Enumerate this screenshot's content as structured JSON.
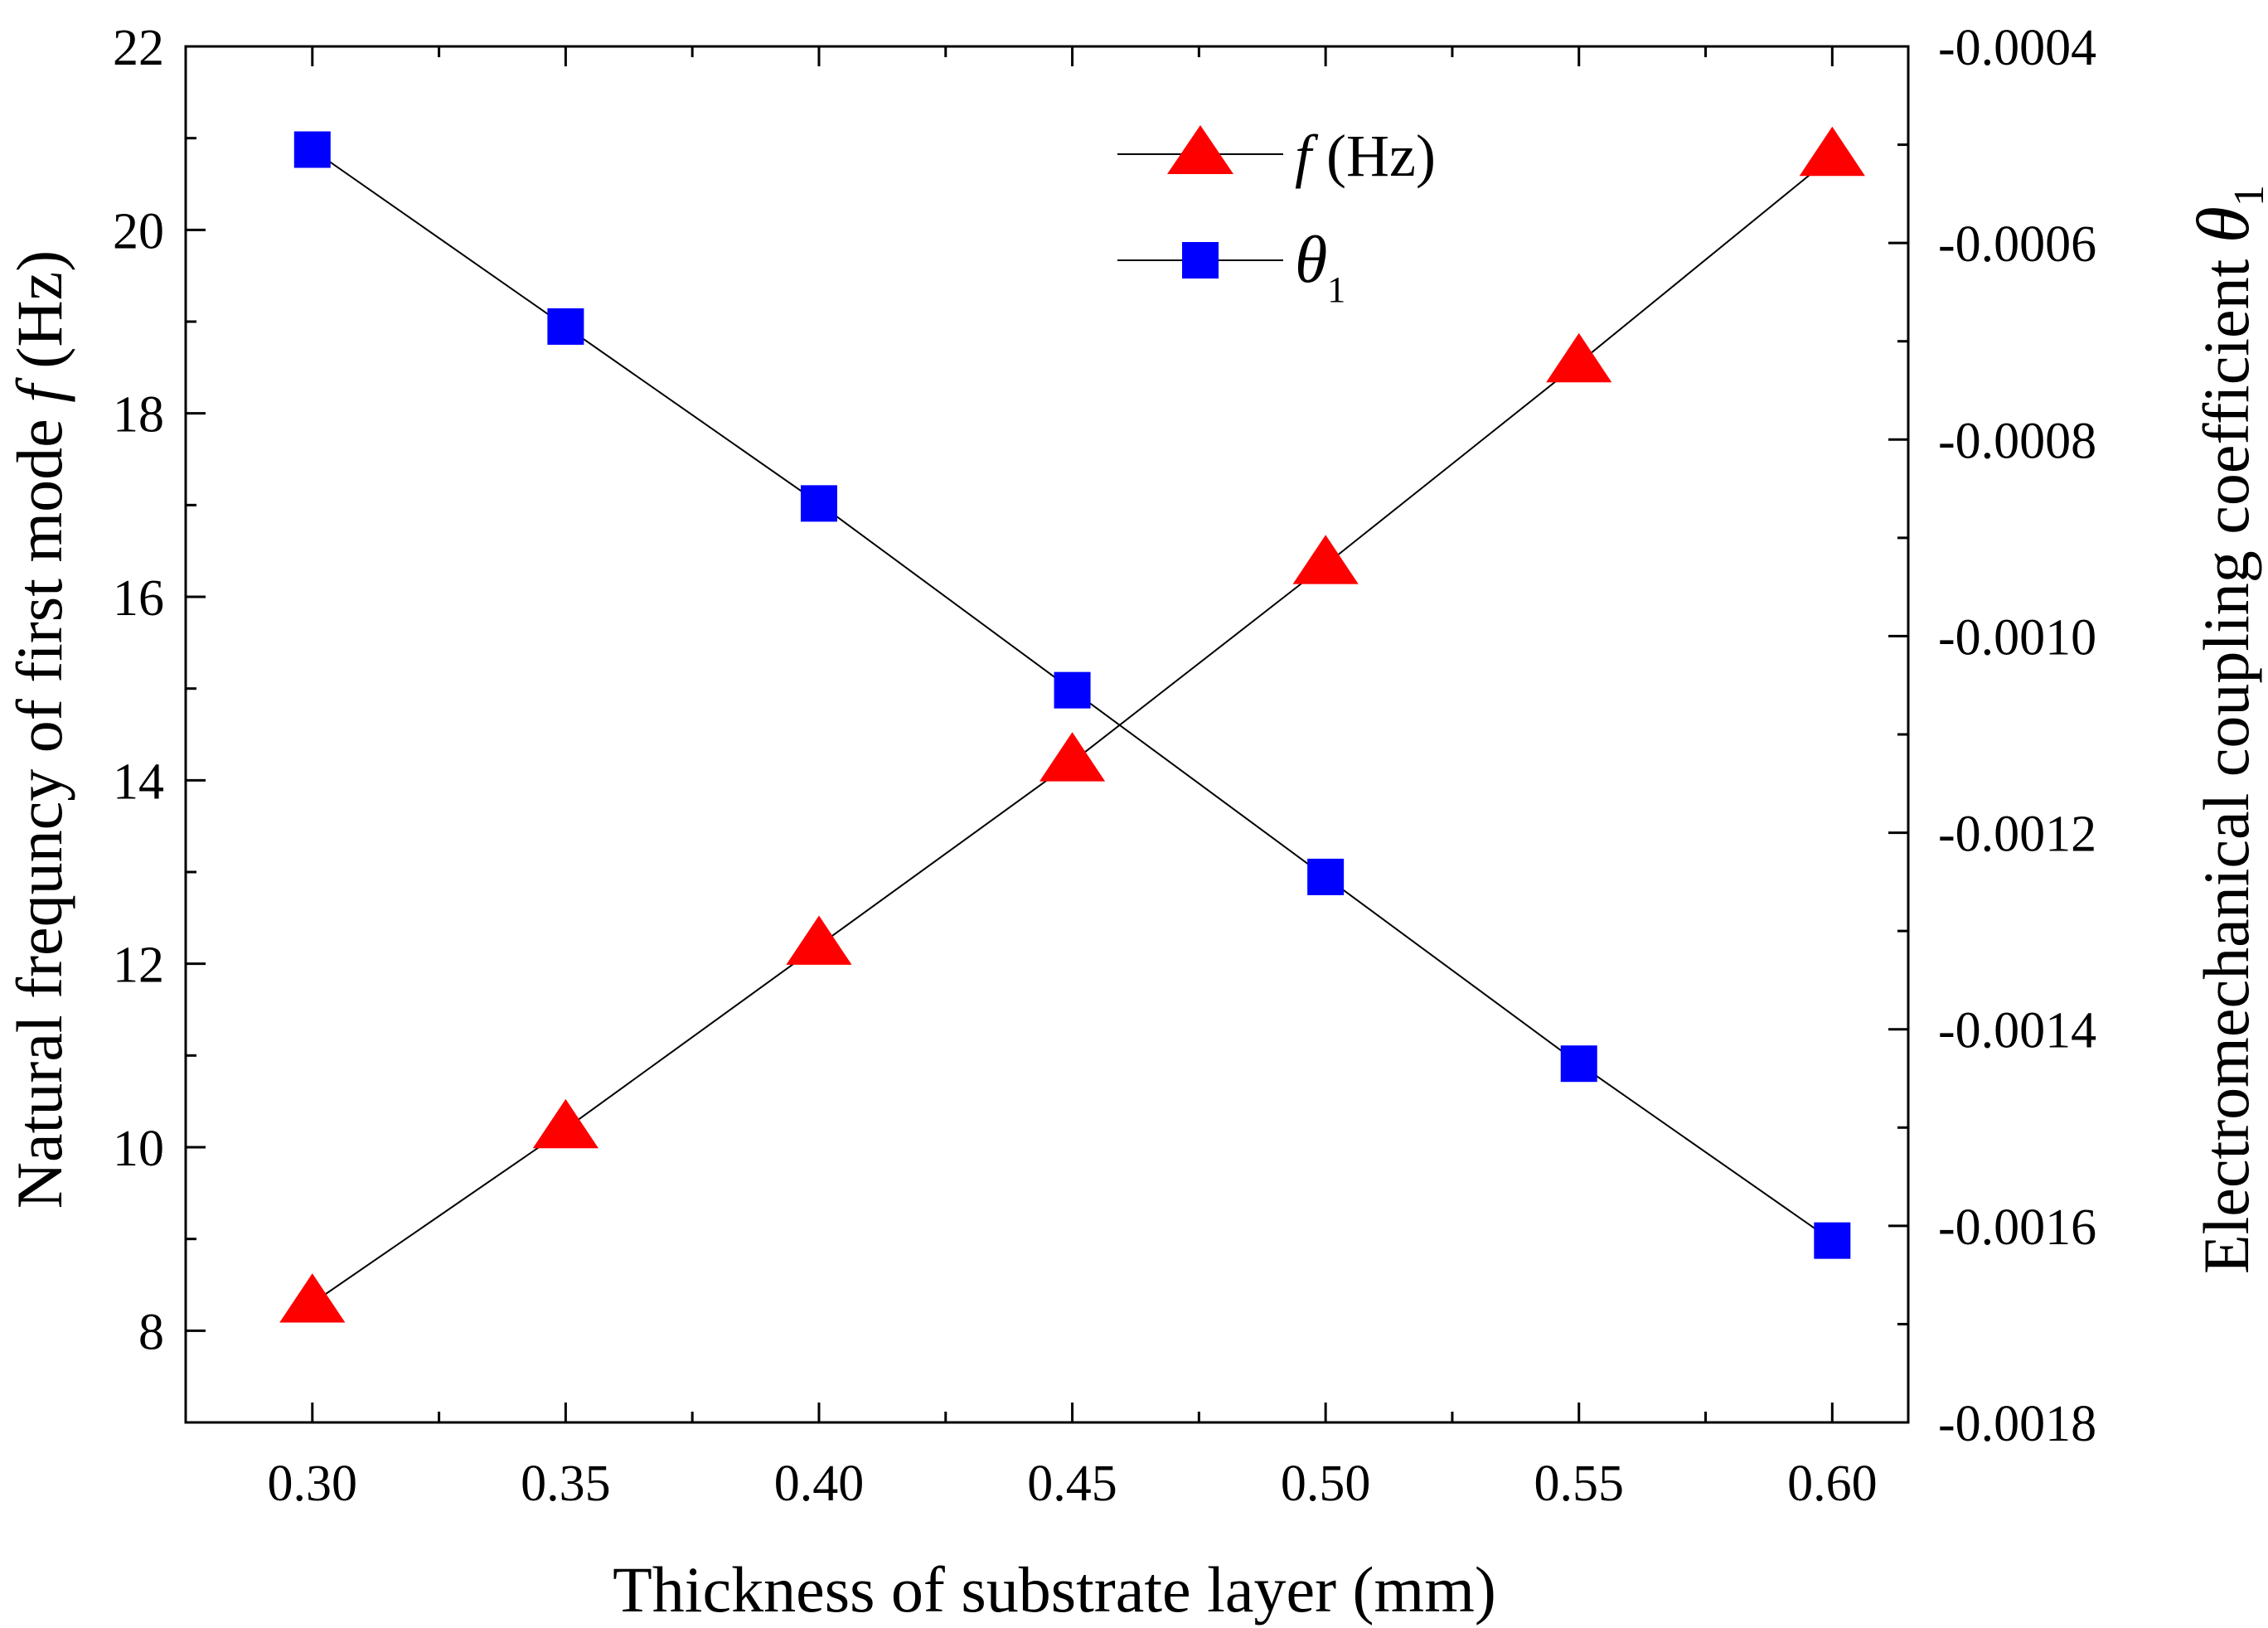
{
  "chart_data": {
    "type": "line",
    "title": "",
    "x": [
      0.3,
      0.35,
      0.4,
      0.45,
      0.5,
      0.55,
      0.6
    ],
    "x_tick_labels": [
      "0.30",
      "0.35",
      "0.40",
      "0.45",
      "0.50",
      "0.55",
      "0.60"
    ],
    "xlim": [
      0.275,
      0.615
    ],
    "xlabel": "Thickness of substrate layer  (mm)",
    "y_left": {
      "label_prefix": "Natural frequncy of first mode ",
      "label_symbol": "f",
      "label_suffix": " (Hz)",
      "lim": [
        7,
        22
      ],
      "ticks": [
        8,
        10,
        12,
        14,
        16,
        18,
        20,
        22
      ],
      "tick_labels": [
        "8",
        "10",
        "12",
        "14",
        "16",
        "18",
        "20",
        "22"
      ]
    },
    "y_right": {
      "label_prefix": "Electromechanical coupling coefficient ",
      "label_symbol": "θ",
      "label_subscript": "1",
      "lim": [
        -0.0018,
        -0.0004
      ],
      "ticks": [
        -0.0018,
        -0.0016,
        -0.0014,
        -0.0012,
        -0.001,
        -0.0008,
        -0.0006,
        -0.0004
      ],
      "tick_labels": [
        "-0.0018",
        "-0.0016",
        "-0.0014",
        "-0.0012",
        "-0.0010",
        "-0.0008",
        "-0.0006",
        "-0.0004"
      ]
    },
    "series": [
      {
        "name": "f (Hz)",
        "legend_symbol": "f",
        "legend_suffix": " (Hz)",
        "axis": "left",
        "marker": "triangle",
        "color": "#ff0000",
        "values": [
          8.3,
          10.2,
          12.2,
          14.2,
          16.35,
          18.55,
          20.8
        ]
      },
      {
        "name": "θ1",
        "legend_symbol": "θ",
        "legend_subscript": "1",
        "axis": "right",
        "marker": "square",
        "color": "#0000ff",
        "values": [
          -0.000505,
          -0.000685,
          -0.000865,
          -0.001055,
          -0.001245,
          -0.001435,
          -0.001615
        ]
      }
    ],
    "legend_position": "top-right",
    "line_color": "#000000",
    "grid": false
  }
}
